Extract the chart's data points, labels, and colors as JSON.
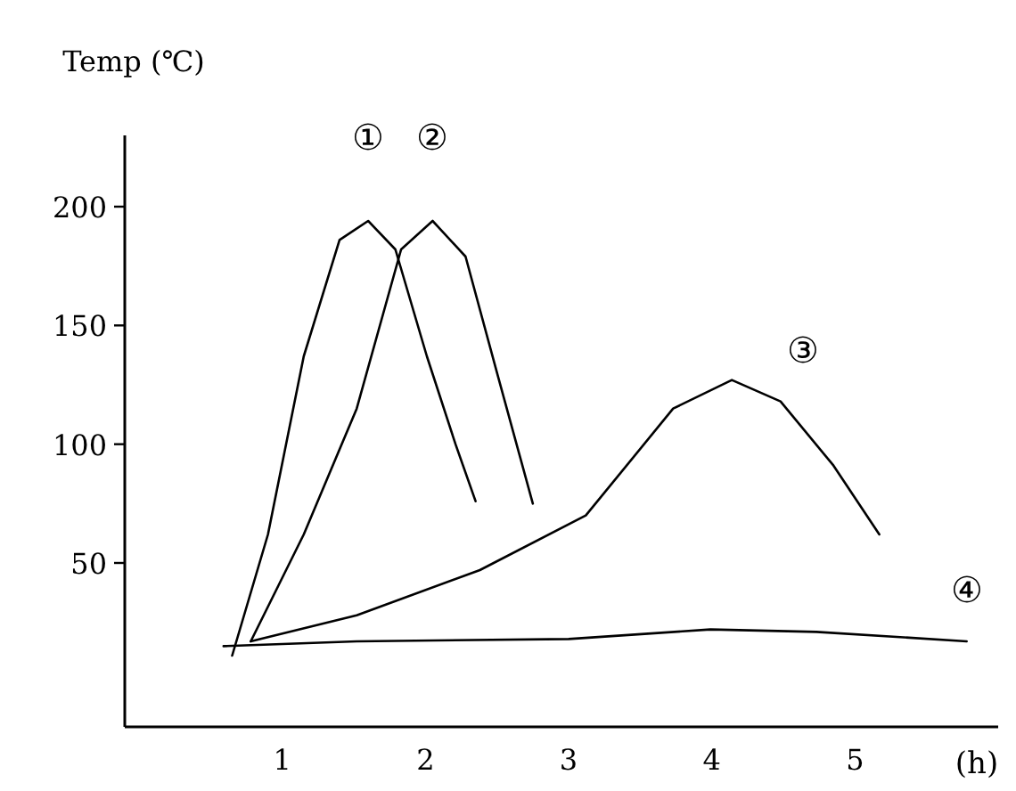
{
  "chart_data": {
    "type": "line",
    "ylabel": "Temp (℃)",
    "xlabel": "(h)",
    "xlim": [
      -0.1,
      6.0
    ],
    "ylim": [
      -19,
      230
    ],
    "xticks": [
      1,
      2,
      3,
      4,
      5
    ],
    "yticks": [
      50,
      100,
      150,
      200
    ],
    "grid": false,
    "marker": "none",
    "line_style": "solid",
    "series": [
      {
        "color": "#000000",
        "x": [
          0.65,
          0.9,
          1.15,
          1.4,
          1.6,
          1.79,
          2.01,
          2.21,
          2.35
        ],
        "values": [
          11,
          62,
          137,
          186,
          194,
          182,
          137,
          100,
          76
        ]
      },
      {
        "color": "#000000",
        "x": [
          0.78,
          1.15,
          1.52,
          1.83,
          2.05,
          2.28,
          2.5,
          2.75
        ],
        "values": [
          17,
          62,
          115,
          182,
          194,
          179,
          130,
          75
        ]
      },
      {
        "color": "#000000",
        "x": [
          0.78,
          1.52,
          2.38,
          3.12,
          3.73,
          4.14,
          4.48,
          4.85,
          5.17
        ],
        "values": [
          17,
          28,
          47,
          70,
          115,
          127,
          118,
          91,
          62
        ]
      },
      {
        "color": "#000000",
        "x": [
          0.59,
          1.52,
          3.0,
          3.99,
          4.73,
          5.78
        ],
        "values": [
          15,
          17,
          18,
          22,
          21,
          17
        ]
      }
    ],
    "annotations": [
      "①",
      "②",
      "③",
      "④"
    ]
  }
}
